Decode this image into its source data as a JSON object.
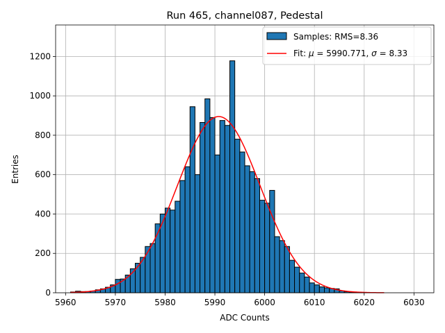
{
  "chart_data": {
    "type": "bar",
    "title": "Run 465, channel087, Pedestal",
    "xlabel": "ADC Counts",
    "ylabel": "Entries",
    "xlim": [
      5958,
      6034
    ],
    "ylim": [
      0,
      1360
    ],
    "x_ticks": [
      5960,
      5970,
      5980,
      5990,
      6000,
      6010,
      6020,
      6030
    ],
    "y_ticks": [
      0,
      200,
      400,
      600,
      800,
      1000,
      1200
    ],
    "grid": true,
    "legend_position": "top-right",
    "bin_width": 1,
    "bins_start": 5961,
    "values": [
      4,
      8,
      6,
      6,
      9,
      15,
      20,
      28,
      40,
      68,
      70,
      90,
      122,
      150,
      180,
      235,
      250,
      350,
      400,
      430,
      420,
      465,
      570,
      640,
      945,
      600,
      865,
      985,
      890,
      700,
      875,
      850,
      1178,
      780,
      715,
      645,
      615,
      580,
      470,
      455,
      520,
      285,
      265,
      235,
      165,
      130,
      100,
      80,
      50,
      40,
      30,
      25,
      22,
      20,
      10,
      5,
      4,
      2,
      2,
      1,
      1,
      0,
      0
    ],
    "series": [
      {
        "name": "Samples: RMS=8.36",
        "kind": "histogram",
        "color": "#1f77b4",
        "edge_color": "#000000"
      },
      {
        "name": "Fit: μ = 5990.771, σ = 8.33",
        "kind": "gaussian-fit",
        "color": "#ff0000",
        "mu": 5990.771,
        "sigma": 8.33,
        "amplitude": 895,
        "x_range": [
          5961,
          6024
        ]
      }
    ],
    "legend": {
      "samples_prefix": "Samples: RMS=8.36",
      "fit_prefix": "Fit: ",
      "fit_mu": "μ",
      "fit_mid": " = 5990.771, ",
      "fit_sigma": "σ",
      "fit_suffix": " = 8.33"
    }
  }
}
